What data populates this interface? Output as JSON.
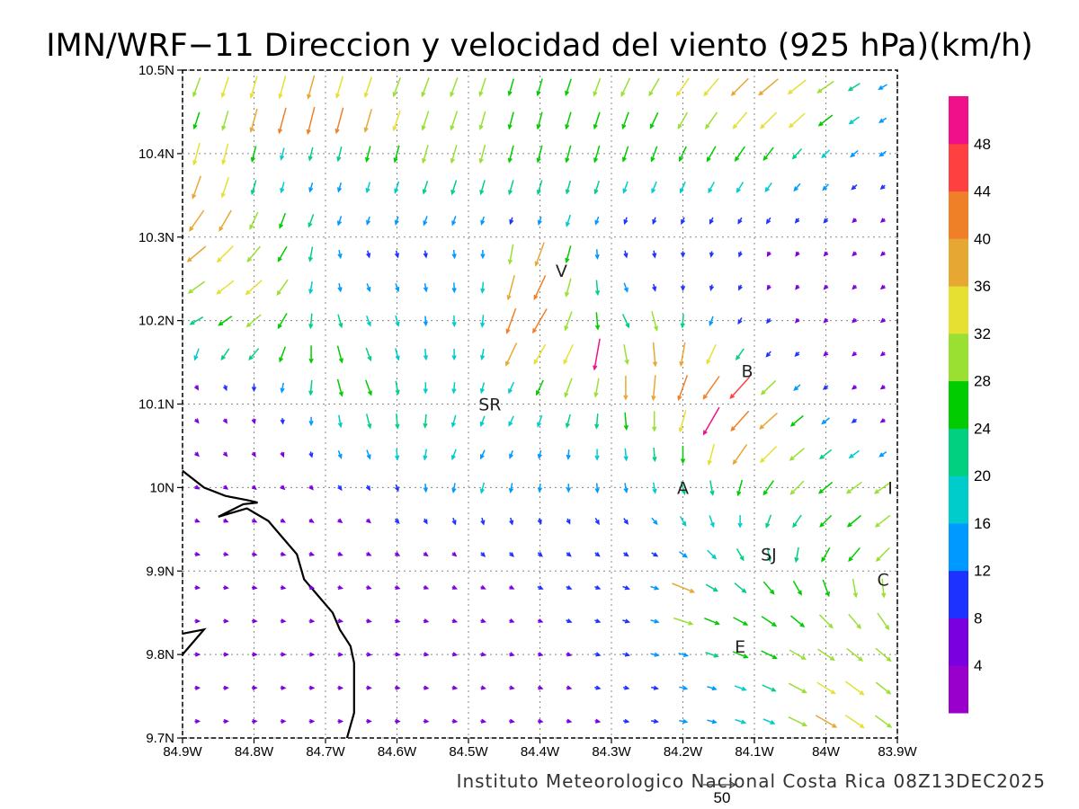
{
  "title": "IMN/WRF−11 Direccion y velocidad del viento (925 hPa)(km/h)",
  "footer": "Instituto Meteorologico Nacional Costa Rica 08Z13DEC2025",
  "reference_vector_label": "50",
  "colors": {
    "bins": [
      "#9900cc",
      "#7a00e0",
      "#1e32ff",
      "#0099ff",
      "#00cccc",
      "#00d080",
      "#00cc00",
      "#99e033",
      "#e6e033",
      "#e6a833",
      "#f08027",
      "#ff4040",
      "#f0108a"
    ]
  },
  "chart_data": {
    "type": "vector-field",
    "title": "IMN/WRF−11 Direccion y velocidad del viento (925 hPa)(km/h)",
    "xlim": [
      -84.9,
      -83.9
    ],
    "ylim": [
      9.7,
      10.5
    ],
    "x_tick_labels": [
      "84.9W",
      "84.8W",
      "84.7W",
      "84.6W",
      "84.5W",
      "84.4W",
      "84.3W",
      "84.2W",
      "84.1W",
      "84W",
      "83.9W"
    ],
    "x_tick_values": [
      -84.9,
      -84.8,
      -84.7,
      -84.6,
      -84.5,
      -84.4,
      -84.3,
      -84.2,
      -84.1,
      -84.0,
      -83.9
    ],
    "y_tick_labels": [
      "9.7N",
      "9.8N",
      "9.9N",
      "10N",
      "10.1N",
      "10.2N",
      "10.3N",
      "10.4N",
      "10.5N"
    ],
    "y_tick_values": [
      9.7,
      9.8,
      9.9,
      10.0,
      10.1,
      10.2,
      10.3,
      10.4,
      10.5
    ],
    "grid": true,
    "colorbar": {
      "labels": [
        "4",
        "8",
        "12",
        "16",
        "20",
        "24",
        "28",
        "32",
        "36",
        "40",
        "44",
        "48"
      ],
      "levels": [
        4,
        8,
        12,
        16,
        20,
        24,
        28,
        32,
        36,
        40,
        44,
        48
      ]
    },
    "reference_vector": 50,
    "cities": [
      {
        "label": "V",
        "lon": -84.37,
        "lat": 10.26
      },
      {
        "label": "B",
        "lon": -84.11,
        "lat": 10.14
      },
      {
        "label": "SR",
        "lon": -84.47,
        "lat": 10.1
      },
      {
        "label": "A",
        "lon": -84.2,
        "lat": 10.0
      },
      {
        "label": "I",
        "lon": -83.91,
        "lat": 10.0
      },
      {
        "label": "SJ",
        "lon": -84.08,
        "lat": 9.92
      },
      {
        "label": "C",
        "lon": -83.92,
        "lat": 9.89
      },
      {
        "label": "E",
        "lon": -84.12,
        "lat": 9.81
      }
    ],
    "coastline": [
      [
        -84.9,
        10.02
      ],
      [
        -84.87,
        10.0
      ],
      [
        -84.84,
        9.99
      ],
      [
        -84.81,
        9.985
      ],
      [
        -84.795,
        9.982
      ],
      [
        -84.815,
        9.98
      ],
      [
        -84.85,
        9.965
      ],
      [
        -84.81,
        9.975
      ],
      [
        -84.78,
        9.96
      ],
      [
        -84.76,
        9.94
      ],
      [
        -84.74,
        9.92
      ],
      [
        -84.73,
        9.89
      ],
      [
        -84.71,
        9.87
      ],
      [
        -84.69,
        9.85
      ],
      [
        -84.68,
        9.83
      ],
      [
        -84.665,
        9.81
      ],
      [
        -84.66,
        9.79
      ],
      [
        -84.66,
        9.75
      ],
      [
        -84.66,
        9.73
      ],
      [
        -84.67,
        9.7
      ]
    ],
    "coastline2": [
      [
        -84.9,
        9.825
      ],
      [
        -84.87,
        9.83
      ],
      [
        -84.9,
        9.8
      ]
    ],
    "wind_grid": {
      "lons": [
        -84.88,
        -84.84,
        -84.8,
        -84.76,
        -84.72,
        -84.68,
        -84.64,
        -84.6,
        -84.56,
        -84.52,
        -84.48,
        -84.44,
        -84.4,
        -84.36,
        -84.32,
        -84.28,
        -84.24,
        -84.2,
        -84.16,
        -84.12,
        -84.08,
        -84.04,
        -84.0,
        -83.96,
        -83.92
      ],
      "lats": [
        10.48,
        10.44,
        10.4,
        10.36,
        10.32,
        10.28,
        10.24,
        10.2,
        10.16,
        10.12,
        10.08,
        10.04,
        10.0,
        9.96,
        9.92,
        9.88,
        9.84,
        9.8,
        9.76,
        9.72
      ],
      "dir_deg": [
        [
          200,
          198,
          196,
          195,
          195,
          196,
          198,
          200,
          200,
          200,
          198,
          196,
          196,
          198,
          200,
          205,
          210,
          215,
          220,
          225,
          230,
          232,
          235,
          238,
          240
        ],
        [
          198,
          196,
          195,
          195,
          194,
          195,
          196,
          198,
          198,
          198,
          196,
          195,
          195,
          196,
          198,
          200,
          205,
          210,
          215,
          220,
          225,
          228,
          232,
          235,
          238
        ],
        [
          195,
          194,
          194,
          194,
          194,
          194,
          194,
          195,
          196,
          196,
          195,
          194,
          194,
          195,
          196,
          198,
          200,
          205,
          210,
          214,
          218,
          222,
          226,
          230,
          232
        ],
        [
          200,
          198,
          196,
          196,
          196,
          196,
          196,
          198,
          198,
          198,
          196,
          196,
          196,
          196,
          198,
          200,
          202,
          205,
          208,
          212,
          216,
          220,
          224,
          228,
          230
        ],
        [
          215,
          210,
          205,
          200,
          200,
          198,
          198,
          198,
          200,
          200,
          198,
          198,
          198,
          198,
          200,
          200,
          202,
          204,
          206,
          210,
          214,
          218,
          222,
          226,
          228
        ],
        [
          230,
          225,
          220,
          210,
          190,
          170,
          165,
          165,
          170,
          175,
          180,
          190,
          200,
          195,
          175,
          165,
          170,
          180,
          190,
          200,
          210,
          215,
          220,
          225,
          228
        ],
        [
          235,
          232,
          228,
          215,
          190,
          170,
          160,
          160,
          170,
          178,
          185,
          195,
          205,
          195,
          175,
          160,
          165,
          180,
          195,
          205,
          212,
          218,
          222,
          225,
          228
        ],
        [
          240,
          235,
          230,
          210,
          185,
          165,
          160,
          165,
          175,
          178,
          185,
          200,
          210,
          200,
          175,
          155,
          165,
          185,
          200,
          210,
          215,
          220,
          225,
          228,
          230
        ],
        [
          200,
          215,
          220,
          200,
          180,
          165,
          160,
          165,
          175,
          180,
          190,
          205,
          210,
          205,
          190,
          170,
          175,
          190,
          205,
          215,
          220,
          225,
          228,
          230,
          232
        ],
        [
          150,
          160,
          180,
          190,
          185,
          165,
          160,
          170,
          180,
          185,
          195,
          205,
          205,
          200,
          190,
          180,
          185,
          200,
          215,
          222,
          226,
          228,
          230,
          232,
          234
        ],
        [
          140,
          150,
          165,
          175,
          180,
          170,
          165,
          175,
          185,
          195,
          200,
          205,
          200,
          195,
          185,
          175,
          180,
          195,
          210,
          222,
          228,
          230,
          232,
          234,
          236
        ],
        [
          135,
          140,
          150,
          160,
          165,
          160,
          160,
          175,
          190,
          200,
          205,
          200,
          195,
          185,
          180,
          175,
          175,
          180,
          195,
          215,
          225,
          230,
          232,
          234,
          236
        ],
        [
          120,
          125,
          130,
          135,
          140,
          145,
          150,
          160,
          175,
          190,
          195,
          190,
          185,
          180,
          175,
          170,
          170,
          165,
          170,
          195,
          215,
          225,
          230,
          233,
          235
        ],
        [
          110,
          112,
          115,
          118,
          120,
          125,
          130,
          140,
          150,
          160,
          165,
          165,
          160,
          155,
          150,
          145,
          140,
          150,
          160,
          180,
          200,
          215,
          225,
          230,
          232
        ],
        [
          100,
          102,
          104,
          106,
          108,
          110,
          115,
          120,
          125,
          130,
          135,
          135,
          132,
          130,
          128,
          125,
          120,
          125,
          135,
          150,
          170,
          190,
          210,
          220,
          225
        ],
        [
          95,
          96,
          98,
          100,
          102,
          104,
          106,
          108,
          110,
          112,
          115,
          116,
          115,
          114,
          112,
          110,
          108,
          112,
          120,
          130,
          140,
          150,
          160,
          170,
          175
        ],
        [
          92,
          93,
          94,
          95,
          96,
          98,
          100,
          102,
          104,
          106,
          108,
          110,
          110,
          110,
          108,
          106,
          105,
          108,
          112,
          118,
          124,
          130,
          135,
          140,
          145
        ],
        [
          90,
          90,
          91,
          92,
          93,
          94,
          96,
          98,
          100,
          102,
          104,
          105,
          106,
          106,
          105,
          104,
          103,
          105,
          108,
          112,
          116,
          120,
          124,
          128,
          130
        ],
        [
          88,
          88,
          89,
          90,
          91,
          92,
          94,
          96,
          98,
          100,
          102,
          103,
          104,
          104,
          103,
          102,
          101,
          103,
          106,
          110,
          114,
          118,
          122,
          126,
          128
        ],
        [
          86,
          86,
          87,
          88,
          89,
          90,
          92,
          94,
          96,
          98,
          100,
          101,
          102,
          102,
          101,
          100,
          99,
          101,
          104,
          108,
          112,
          116,
          120,
          124,
          126
        ]
      ],
      "speed_kmh": [
        [
          30,
          32,
          34,
          35,
          36,
          34,
          32,
          30,
          30,
          30,
          28,
          26,
          26,
          26,
          28,
          30,
          30,
          32,
          34,
          36,
          38,
          34,
          30,
          20,
          14
        ],
        [
          26,
          30,
          36,
          40,
          42,
          40,
          36,
          32,
          30,
          30,
          28,
          26,
          26,
          26,
          26,
          26,
          26,
          28,
          30,
          32,
          34,
          32,
          26,
          18,
          12
        ],
        [
          34,
          32,
          24,
          18,
          20,
          22,
          24,
          26,
          28,
          28,
          28,
          26,
          26,
          26,
          26,
          24,
          24,
          24,
          26,
          26,
          24,
          20,
          16,
          14,
          12
        ],
        [
          36,
          32,
          22,
          16,
          14,
          14,
          16,
          18,
          20,
          22,
          22,
          22,
          22,
          20,
          20,
          18,
          18,
          18,
          18,
          18,
          16,
          14,
          12,
          10,
          8
        ],
        [
          38,
          36,
          28,
          24,
          20,
          14,
          12,
          12,
          14,
          14,
          12,
          10,
          12,
          18,
          12,
          10,
          10,
          10,
          10,
          10,
          10,
          8,
          8,
          6,
          6
        ],
        [
          36,
          34,
          30,
          26,
          22,
          12,
          10,
          10,
          10,
          12,
          12,
          30,
          38,
          26,
          14,
          10,
          10,
          8,
          8,
          8,
          6,
          6,
          6,
          4,
          4
        ],
        [
          30,
          32,
          32,
          28,
          18,
          12,
          12,
          12,
          12,
          14,
          16,
          38,
          40,
          28,
          22,
          14,
          10,
          8,
          8,
          8,
          6,
          6,
          6,
          4,
          4
        ],
        [
          22,
          24,
          28,
          26,
          22,
          20,
          16,
          16,
          14,
          16,
          18,
          40,
          42,
          30,
          26,
          22,
          30,
          20,
          14,
          10,
          8,
          6,
          6,
          4,
          4
        ],
        [
          18,
          20,
          22,
          24,
          26,
          26,
          20,
          18,
          16,
          16,
          16,
          38,
          34,
          32,
          48,
          30,
          36,
          36,
          32,
          20,
          10,
          8,
          6,
          4,
          4
        ],
        [
          6,
          8,
          10,
          14,
          22,
          26,
          24,
          20,
          16,
          16,
          16,
          18,
          24,
          30,
          28,
          36,
          38,
          40,
          42,
          44,
          30,
          12,
          8,
          6,
          4
        ],
        [
          6,
          6,
          6,
          8,
          12,
          18,
          22,
          22,
          20,
          18,
          16,
          16,
          18,
          20,
          22,
          26,
          30,
          34,
          48,
          40,
          36,
          24,
          14,
          8,
          6
        ],
        [
          6,
          6,
          6,
          6,
          8,
          12,
          14,
          16,
          16,
          16,
          14,
          12,
          12,
          14,
          16,
          18,
          20,
          26,
          32,
          36,
          34,
          28,
          22,
          18,
          12
        ],
        [
          6,
          6,
          6,
          6,
          6,
          8,
          8,
          10,
          12,
          14,
          16,
          14,
          12,
          12,
          14,
          14,
          16,
          20,
          22,
          24,
          26,
          28,
          26,
          28,
          30
        ],
        [
          6,
          6,
          6,
          6,
          6,
          6,
          6,
          8,
          8,
          10,
          10,
          10,
          8,
          8,
          10,
          10,
          12,
          16,
          18,
          18,
          20,
          22,
          24,
          26,
          28
        ],
        [
          6,
          6,
          6,
          6,
          6,
          6,
          6,
          6,
          6,
          6,
          8,
          8,
          8,
          8,
          8,
          8,
          10,
          14,
          18,
          20,
          20,
          22,
          24,
          26,
          28
        ],
        [
          6,
          6,
          6,
          6,
          6,
          6,
          6,
          6,
          6,
          6,
          6,
          6,
          8,
          8,
          8,
          10,
          12,
          36,
          20,
          22,
          24,
          24,
          26,
          28,
          28
        ],
        [
          6,
          6,
          6,
          6,
          6,
          6,
          6,
          6,
          6,
          6,
          6,
          6,
          6,
          8,
          8,
          10,
          12,
          30,
          24,
          24,
          26,
          26,
          28,
          28,
          30
        ],
        [
          6,
          6,
          6,
          6,
          6,
          6,
          6,
          6,
          6,
          6,
          6,
          6,
          6,
          6,
          8,
          10,
          12,
          14,
          20,
          24,
          26,
          28,
          30,
          30,
          30
        ],
        [
          6,
          6,
          6,
          6,
          6,
          6,
          6,
          6,
          6,
          6,
          6,
          6,
          6,
          6,
          8,
          8,
          10,
          12,
          14,
          18,
          22,
          30,
          32,
          34,
          28
        ],
        [
          6,
          6,
          6,
          6,
          6,
          6,
          6,
          6,
          6,
          6,
          6,
          6,
          6,
          6,
          6,
          8,
          10,
          12,
          14,
          16,
          18,
          30,
          36,
          34,
          30
        ]
      ]
    }
  }
}
